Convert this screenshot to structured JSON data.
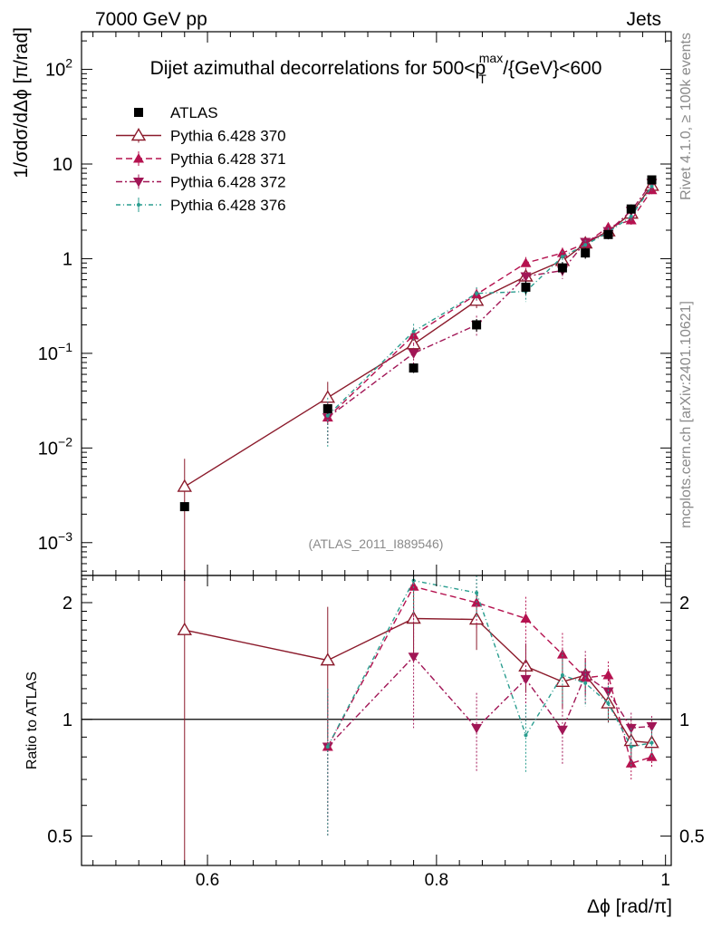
{
  "header": {
    "left": "7000 GeV pp",
    "right": "Jets"
  },
  "side_labels": {
    "top": "Rivet 4.1.0, ≥ 100k events",
    "bottom": "mcplots.cern.ch [arXiv:2401.10621]"
  },
  "chart_data": {
    "type": "line",
    "title": "Dijet azimuthal decorrelations for 500<p_T^max/{GeV}<600",
    "title_parts": {
      "pre": "Dijet azimuthal decorrelations for 500<p",
      "sup": "max",
      "sub": "T",
      "post": "/{GeV}<600"
    },
    "analysis_tag": "(ATLAS_2011_I889546)",
    "xlabel": "Δϕ [rad/π]",
    "ylabel_main": "1/σdσ/dΔϕ [π/rad]",
    "ylabel_ratio": "Ratio to ATLAS",
    "x_range": [
      0.49,
      1.005
    ],
    "y_range_main": [
      0.00045,
      250
    ],
    "y_scale_main": "log",
    "y_range_ratio": [
      0.42,
      2.35
    ],
    "y_scale_ratio": "log",
    "x_ticks": [
      0.6,
      0.8,
      1.0
    ],
    "x_tick_labels": [
      "0.6",
      "0.8",
      "1"
    ],
    "y_ticks_main": [
      0.001,
      0.01,
      0.1,
      1,
      10,
      100
    ],
    "y_tick_labels_main": [
      {
        "base": "10",
        "exp": "−3"
      },
      {
        "base": "10",
        "exp": "−2"
      },
      {
        "base": "10",
        "exp": "−1"
      },
      {
        "base": "1",
        "exp": ""
      },
      {
        "base": "10",
        "exp": ""
      },
      {
        "base": "10",
        "exp": "2"
      }
    ],
    "y_ticks_ratio": [
      0.5,
      1,
      2
    ],
    "y_tick_labels_ratio": [
      "0.5",
      "1",
      "2"
    ],
    "legend_position": "top-left",
    "x": [
      0.58,
      0.705,
      0.78,
      0.835,
      0.878,
      0.91,
      0.93,
      0.95,
      0.97,
      0.988
    ],
    "data": {
      "name": "ATLAS",
      "values": [
        0.0024,
        0.026,
        0.07,
        0.2,
        0.5,
        0.8,
        1.15,
        1.8,
        3.35,
        6.8
      ],
      "errors": [
        0.0002,
        0.003,
        0.008,
        0.03,
        0.08,
        0.12,
        0.15,
        0.2,
        0.4,
        0.6
      ]
    },
    "series": [
      {
        "name": "Pythia 6.428 370",
        "color": "#8b1a2b",
        "dash": "none",
        "marker": "triangle-up-open",
        "values": [
          0.0039,
          0.034,
          0.125,
          0.36,
          0.65,
          0.95,
          1.45,
          1.95,
          3.0,
          5.9
        ],
        "errors": [
          0.0038,
          0.016,
          0.03,
          0.06,
          0.1,
          0.14,
          0.18,
          0.22,
          0.4,
          0.6
        ],
        "ratio": [
          1.7,
          1.42,
          1.82,
          1.81,
          1.37,
          1.25,
          1.3,
          1.1,
          0.88,
          0.87
        ],
        "ratio_errors": [
          1.6,
          0.53,
          0.4,
          0.3,
          0.2,
          0.18,
          0.14,
          0.12,
          0.1,
          0.07
        ]
      },
      {
        "name": "Pythia 6.428 371",
        "color": "#b5124f",
        "dash": "7,4",
        "marker": "triangle-up",
        "values": [
          null,
          0.021,
          0.155,
          0.42,
          0.9,
          1.15,
          1.45,
          2.15,
          2.55,
          5.3
        ],
        "errors": [
          null,
          0.01,
          0.03,
          0.07,
          0.14,
          0.16,
          0.18,
          0.22,
          0.3,
          0.5
        ],
        "ratio": [
          null,
          0.85,
          2.2,
          2.0,
          1.82,
          1.47,
          1.28,
          1.3,
          0.77,
          0.8
        ],
        "ratio_errors": [
          null,
          0.35,
          0.4,
          0.3,
          0.25,
          0.2,
          0.14,
          0.11,
          0.07,
          0.05
        ]
      },
      {
        "name": "Pythia 6.428 372",
        "color": "#a11656",
        "dash": "7,3,2,3",
        "marker": "triangle-down",
        "values": [
          null,
          0.021,
          0.1,
          0.2,
          0.65,
          0.75,
          1.5,
          1.95,
          3.2,
          6.3
        ],
        "errors": [
          null,
          0.01,
          0.025,
          0.05,
          0.12,
          0.14,
          0.18,
          0.22,
          0.35,
          0.6
        ],
        "ratio": [
          null,
          0.85,
          1.45,
          0.95,
          1.27,
          0.94,
          1.3,
          1.18,
          0.95,
          0.96
        ],
        "ratio_errors": [
          null,
          0.3,
          0.5,
          0.22,
          0.3,
          0.18,
          0.2,
          0.12,
          0.09,
          0.06
        ]
      },
      {
        "name": "Pythia 6.428 376",
        "color": "#2a9d8f",
        "dash": "5,3,1,3",
        "marker": "dot",
        "values": [
          null,
          0.022,
          0.17,
          0.43,
          0.45,
          1.05,
          1.4,
          1.9,
          2.8,
          5.8
        ],
        "errors": [
          null,
          0.012,
          0.035,
          0.07,
          0.1,
          0.15,
          0.18,
          0.22,
          0.35,
          0.55
        ],
        "ratio": [
          null,
          0.85,
          2.28,
          2.12,
          0.91,
          1.3,
          1.24,
          1.1,
          0.85,
          0.87
        ],
        "ratio_errors": [
          null,
          0.35,
          0.4,
          0.3,
          0.18,
          0.2,
          0.16,
          0.12,
          0.1,
          0.07
        ]
      }
    ]
  }
}
